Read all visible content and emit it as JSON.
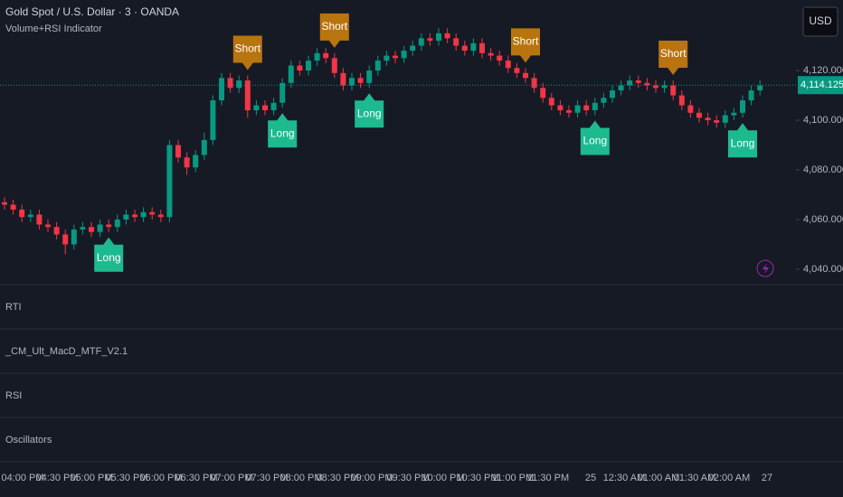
{
  "chart_data": {
    "type": "candlestick",
    "title": "Gold Spot / U.S. Dollar · 3 · OANDA",
    "subtitle": "Volume+RSI Indicator",
    "currency": "USD",
    "up_color": "#089981",
    "down_color": "#f23645",
    "open": [
      4067,
      4066,
      4064,
      4061,
      4062,
      4058,
      4057,
      4054,
      4050,
      4056,
      4057,
      4055,
      4058,
      4057,
      4060,
      4062,
      4061,
      4063,
      4062,
      4061,
      4090,
      4085,
      4081,
      4086,
      4092,
      4108,
      4117,
      4113,
      4116,
      4104,
      4106,
      4104,
      4107,
      4115,
      4122,
      4120,
      4124,
      4127,
      4125,
      4119,
      4114,
      4117,
      4115,
      4120,
      4124,
      4126,
      4125,
      4128,
      4130,
      4133,
      4132,
      4135,
      4133,
      4130,
      4128,
      4131,
      4127,
      4126,
      4124,
      4121,
      4119,
      4117,
      4113,
      4109,
      4106,
      4104,
      4103,
      4106,
      4104,
      4107,
      4109,
      4112,
      4114,
      4116,
      4115,
      4114,
      4113,
      4114,
      4110,
      4106,
      4103,
      4101,
      4100,
      4099,
      4102,
      4103,
      4108,
      4112
    ],
    "high": [
      4069,
      4068,
      4066,
      4064,
      4064,
      4060,
      4059,
      4056,
      4058,
      4059,
      4059,
      4060,
      4060,
      4062,
      4064,
      4064,
      4065,
      4065,
      4064,
      4092,
      4092,
      4087,
      4088,
      4095,
      4110,
      4119,
      4119,
      4118,
      4118,
      4108,
      4108,
      4109,
      4117,
      4124,
      4124,
      4126,
      4129,
      4129,
      4127,
      4121,
      4119,
      4119,
      4122,
      4126,
      4128,
      4128,
      4130,
      4132,
      4135,
      4135,
      4137,
      4137,
      4135,
      4132,
      4133,
      4133,
      4129,
      4128,
      4126,
      4123,
      4121,
      4119,
      4115,
      4111,
      4108,
      4106,
      4108,
      4108,
      4109,
      4111,
      4114,
      4116,
      4118,
      4118,
      4117,
      4116,
      4116,
      4116,
      4112,
      4108,
      4105,
      4103,
      4102,
      4104,
      4105,
      4110,
      4114,
      4116
    ],
    "low": [
      4064,
      4062,
      4059,
      4059,
      4056,
      4055,
      4052,
      4046,
      4048,
      4054,
      4053,
      4053,
      4055,
      4055,
      4058,
      4059,
      4059,
      4060,
      4059,
      4059,
      4083,
      4078,
      4079,
      4084,
      4090,
      4106,
      4111,
      4111,
      4101,
      4102,
      4102,
      4102,
      4105,
      4113,
      4118,
      4118,
      4122,
      4123,
      4117,
      4112,
      4112,
      4113,
      4113,
      4118,
      4122,
      4123,
      4123,
      4126,
      4128,
      4130,
      4130,
      4131,
      4128,
      4126,
      4126,
      4125,
      4124,
      4122,
      4119,
      4117,
      4115,
      4111,
      4107,
      4104,
      4102,
      4101,
      4101,
      4102,
      4102,
      4105,
      4107,
      4110,
      4112,
      4113,
      4112,
      4111,
      4111,
      4108,
      4104,
      4101,
      4099,
      4098,
      4097,
      4097,
      4100,
      4101,
      4106,
      4110
    ],
    "close": [
      4066,
      4064,
      4061,
      4062,
      4058,
      4057,
      4054,
      4050,
      4056,
      4057,
      4055,
      4058,
      4057,
      4060,
      4062,
      4061,
      4063,
      4062,
      4061,
      4090,
      4085,
      4081,
      4086,
      4092,
      4108,
      4117,
      4113,
      4116,
      4104,
      4106,
      4104,
      4107,
      4115,
      4122,
      4120,
      4124,
      4127,
      4125,
      4119,
      4114,
      4117,
      4115,
      4120,
      4124,
      4126,
      4125,
      4128,
      4130,
      4133,
      4132,
      4135,
      4133,
      4130,
      4128,
      4131,
      4127,
      4126,
      4124,
      4121,
      4119,
      4117,
      4113,
      4109,
      4106,
      4104,
      4103,
      4106,
      4104,
      4107,
      4109,
      4112,
      4114,
      4116,
      4115,
      4114,
      4113,
      4114,
      4110,
      4106,
      4103,
      4101,
      4100,
      4099,
      4102,
      4103,
      4108,
      4112,
      4114
    ],
    "annotations": [
      "Long",
      "Short",
      "Long",
      "Short",
      "Long",
      "Short",
      "Long",
      "Short",
      "Long"
    ],
    "ylim": [
      4033.8,
      4148.4
    ],
    "yticks": [
      {
        "value": 4040,
        "label": "4,040.000"
      },
      {
        "value": 4060,
        "label": "4,060.000"
      },
      {
        "value": 4080,
        "label": "4,080.000"
      },
      {
        "value": 4100,
        "label": "4,100.000"
      },
      {
        "value": 4120,
        "label": "4,120.000"
      }
    ],
    "last_price": {
      "value": 4114.125,
      "label": "4,114.125"
    },
    "xticks": [
      "04:00 PM",
      "04:30 PM",
      "05:00 PM",
      "05:30 PM",
      "06:00 PM",
      "06:30 PM",
      "07:00 PM",
      "07:30 PM",
      "08:00 PM",
      "08:30 PM",
      "09:00 PM",
      "09:30 PM",
      "10:00 PM",
      "10:30 PM",
      "11:00 PM",
      "11:30 PM",
      "25",
      "12:30 AM",
      "01:00 AM",
      "01:30 AM",
      "02:00 AM",
      "27"
    ],
    "panes": [
      "RTI",
      "_CM_Ult_MacD_MTF_V2.1",
      "RSI",
      "Oscillators"
    ]
  }
}
